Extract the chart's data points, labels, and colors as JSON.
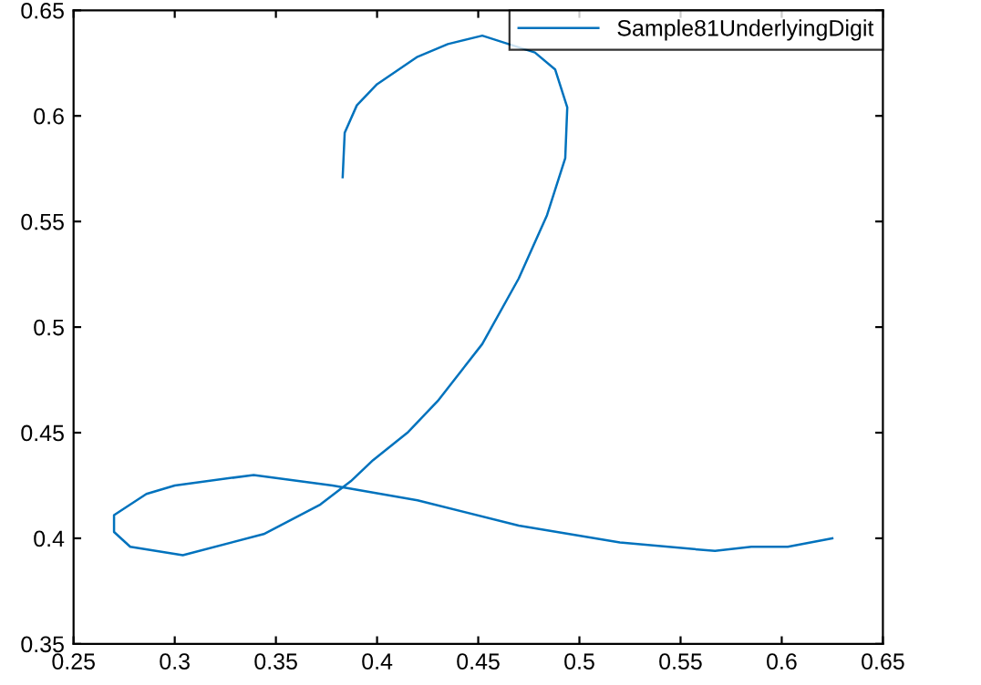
{
  "chart_data": {
    "type": "line",
    "legend": "top right",
    "grid": false,
    "marker": "none",
    "line_style": "solid",
    "xlim": [
      0.25,
      0.65
    ],
    "ylim": [
      0.35,
      0.65
    ],
    "xticks": [
      0.25,
      0.3,
      0.35,
      0.4,
      0.45,
      0.5,
      0.55,
      0.6,
      0.65
    ],
    "yticks": [
      0.35,
      0.4,
      0.45,
      0.5,
      0.55,
      0.6,
      0.65
    ],
    "series": [
      {
        "name": "Sample81UnderlyingDigit",
        "color": "#0072bd",
        "x": [
          0.383,
          0.384,
          0.39,
          0.4,
          0.42,
          0.435,
          0.452,
          0.478,
          0.488,
          0.494,
          0.493,
          0.484,
          0.47,
          0.452,
          0.43,
          0.415,
          0.398,
          0.387,
          0.372,
          0.344,
          0.304,
          0.278,
          0.27,
          0.27,
          0.286,
          0.3,
          0.339,
          0.378,
          0.42,
          0.47,
          0.52,
          0.567,
          0.585,
          0.603,
          0.625
        ],
        "values": [
          0.571,
          0.592,
          0.605,
          0.615,
          0.628,
          0.634,
          0.638,
          0.63,
          0.622,
          0.604,
          0.58,
          0.553,
          0.523,
          0.492,
          0.465,
          0.45,
          0.437,
          0.427,
          0.416,
          0.402,
          0.392,
          0.396,
          0.403,
          0.411,
          0.421,
          0.425,
          0.43,
          0.425,
          0.418,
          0.406,
          0.398,
          0.394,
          0.396,
          0.396,
          0.4
        ]
      }
    ]
  }
}
